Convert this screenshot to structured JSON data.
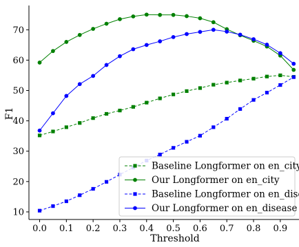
{
  "colors": {
    "baseline_city": "#008000",
    "our_city": "#008000",
    "baseline_disease": "#0000ff",
    "our_disease": "#0000ff",
    "axis": "#000000",
    "legend_border": "#cccccc"
  },
  "chart_data": {
    "type": "line",
    "xlabel": "Threshold",
    "ylabel": "F1",
    "xlim": [
      -0.04,
      0.97
    ],
    "ylim": [
      7.5,
      78
    ],
    "xticks": [
      0.0,
      0.1,
      0.2,
      0.3,
      0.4,
      0.5,
      0.6,
      0.7,
      0.8,
      0.9
    ],
    "xtick_labels": [
      "0.0",
      "0.1",
      "0.2",
      "0.3",
      "0.4",
      "0.5",
      "0.6",
      "0.7",
      "0.8",
      "0.9"
    ],
    "yticks": [
      10,
      20,
      30,
      40,
      50,
      60,
      70
    ],
    "ytick_labels": [
      "10",
      "20",
      "30",
      "40",
      "50",
      "60",
      "70"
    ],
    "grid": false,
    "legend_position": "bottom-right",
    "x": [
      0.0,
      0.05,
      0.1,
      0.15,
      0.2,
      0.25,
      0.3,
      0.35,
      0.4,
      0.45,
      0.5,
      0.55,
      0.6,
      0.65,
      0.7,
      0.75,
      0.8,
      0.85,
      0.9,
      0.95
    ],
    "series": [
      {
        "name": "Baseline Longformer on en_city",
        "color_key": "baseline_city",
        "linestyle": "dashed",
        "marker": "square",
        "values": [
          35.2,
          36.5,
          37.9,
          39.3,
          40.9,
          42.3,
          43.4,
          44.6,
          46.0,
          47.4,
          48.7,
          49.8,
          50.8,
          51.9,
          52.6,
          53.3,
          53.9,
          54.6,
          55.0,
          54.5
        ]
      },
      {
        "name": "Our Longformer on en_city",
        "color_key": "our_city",
        "linestyle": "solid",
        "marker": "circle",
        "values": [
          59.2,
          63.0,
          66.0,
          68.3,
          70.3,
          72.0,
          73.5,
          74.4,
          75.0,
          74.9,
          74.9,
          74.5,
          73.8,
          72.5,
          70.2,
          68.2,
          66.4,
          64.5,
          61.5,
          56.8
        ]
      },
      {
        "name": "Baseline Longformer on en_disease",
        "color_key": "baseline_disease",
        "linestyle": "dashed",
        "marker": "square",
        "values": [
          10.4,
          11.9,
          13.5,
          15.5,
          17.6,
          19.9,
          22.3,
          24.6,
          26.9,
          28.9,
          31.1,
          33.1,
          35.1,
          37.9,
          40.7,
          43.9,
          46.9,
          49.3,
          51.8,
          54.4
        ]
      },
      {
        "name": "Our Longformer on en_disease",
        "color_key": "our_disease",
        "linestyle": "solid",
        "marker": "circle",
        "values": [
          36.8,
          42.5,
          48.2,
          52.1,
          54.8,
          58.4,
          61.3,
          63.6,
          65.0,
          66.2,
          67.6,
          68.6,
          69.3,
          70.0,
          69.4,
          68.4,
          66.9,
          65.1,
          62.3,
          58.8
        ]
      }
    ]
  }
}
